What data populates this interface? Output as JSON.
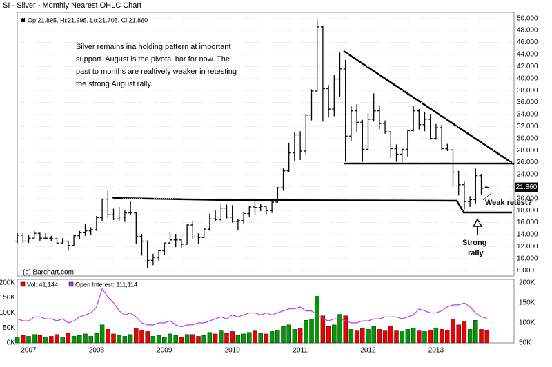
{
  "chart_data": [
    {
      "type": "ohlc",
      "title": "SI - Silver - Monthly Nearest OHLC Chart",
      "header": "Op:21.895, Hi:21.995, Lo:21.705, Cl:21.860",
      "price_tag": "21.860",
      "color": "#000000",
      "categories": [
        null,
        null,
        "2007",
        null,
        null,
        null,
        null,
        null,
        null,
        null,
        null,
        null,
        null,
        null,
        "2008",
        null,
        null,
        null,
        null,
        null,
        null,
        null,
        null,
        null,
        null,
        null,
        "2009",
        null,
        null,
        null,
        null,
        null,
        null,
        null,
        null,
        null,
        null,
        null,
        "2010",
        null,
        null,
        null,
        null,
        null,
        null,
        null,
        null,
        null,
        null,
        null,
        "2011",
        null,
        null,
        null,
        null,
        null,
        null,
        null,
        null,
        null,
        null,
        null,
        "2012",
        null,
        null,
        null,
        null,
        null,
        null,
        null,
        null,
        null,
        null,
        null,
        "2013",
        null,
        null,
        null,
        null,
        null,
        null,
        null,
        null,
        null
      ],
      "open": [
        12.9,
        13.9,
        12.9,
        13.4,
        14.2,
        13.4,
        13.4,
        13.3,
        12.6,
        12.9,
        12.2,
        13.8,
        14.3,
        14.6,
        14.8,
        16.8,
        19.9,
        17.3,
        16.6,
        16.9,
        17.6,
        17.6,
        13.7,
        12.9,
        9.7,
        10.2,
        11.3,
        12.6,
        13.1,
        13.1,
        12.4,
        15.6,
        13.6,
        13.5,
        14.9,
        16.6,
        16.5,
        18.4,
        16.9,
        16.2,
        16.3,
        17.5,
        18.6,
        18.5,
        18.7,
        18.0,
        19.4,
        21.8,
        24.6,
        27.6,
        30.6,
        27.9,
        33.9,
        37.9,
        48.6,
        38.3,
        34.9,
        39.9,
        41.6,
        30.4,
        34.6,
        32.7,
        28.2,
        33.2,
        34.6,
        32.5,
        31.1,
        28.3,
        27.4,
        28.2,
        31.3,
        34.6,
        32.3,
        33.2,
        30.0,
        31.8,
        28.3,
        28.1,
        24.4,
        22.3,
        19.5,
        19.8,
        23.8,
        21.895
      ],
      "high": [
        14.2,
        14.2,
        13.9,
        14.6,
        14.3,
        14.2,
        13.8,
        13.7,
        13.4,
        13.0,
        13.9,
        14.6,
        15.8,
        15.2,
        17.1,
        20.0,
        21.3,
        18.3,
        18.6,
        18.0,
        19.5,
        17.7,
        14.1,
        13.0,
        10.8,
        11.5,
        12.6,
        14.5,
        14.1,
        13.2,
        15.7,
        16.3,
        14.2,
        15.1,
        17.5,
        18.0,
        19.2,
        19.0,
        18.9,
        16.6,
        17.8,
        18.8,
        19.5,
        19.1,
        18.7,
        19.6,
        21.9,
        25.0,
        29.3,
        31.0,
        31.2,
        34.1,
        38.2,
        49.8,
        48.8,
        38.9,
        40.6,
        44.3,
        43.1,
        35.5,
        35.7,
        33.1,
        34.2,
        37.5,
        35.5,
        33.0,
        31.2,
        29.0,
        28.3,
        31.4,
        35.4,
        34.9,
        34.4,
        34.1,
        32.4,
        32.3,
        29.1,
        28.2,
        24.6,
        22.8,
        20.4,
        25.0,
        24.1,
        21.995
      ],
      "low": [
        12.6,
        12.6,
        12.6,
        13.3,
        12.9,
        13.2,
        12.9,
        12.4,
        12.5,
        11.3,
        12.1,
        13.2,
        13.8,
        13.9,
        14.6,
        16.2,
        16.8,
        16.4,
        16.2,
        16.1,
        17.3,
        12.5,
        10.5,
        8.4,
        8.9,
        9.5,
        10.6,
        12.4,
        11.9,
        11.7,
        12.3,
        13.3,
        12.5,
        13.4,
        14.6,
        16.2,
        16.1,
        16.7,
        16.0,
        14.7,
        15.7,
        17.0,
        17.2,
        17.9,
        17.4,
        17.6,
        19.3,
        21.3,
        24.4,
        26.3,
        26.4,
        27.3,
        33.0,
        37.8,
        32.8,
        33.5,
        33.7,
        36.9,
        26.1,
        29.6,
        31.1,
        26.1,
        28.1,
        32.8,
        31.6,
        30.8,
        26.7,
        26.1,
        26.0,
        27.0,
        31.2,
        31.5,
        31.2,
        29.8,
        29.8,
        28.0,
        27.9,
        22.0,
        20.5,
        18.2,
        18.6,
        19.2,
        20.6,
        21.705
      ],
      "close": [
        13.9,
        12.9,
        13.4,
        14.2,
        13.4,
        13.4,
        13.3,
        12.6,
        12.9,
        12.2,
        13.8,
        14.3,
        14.6,
        14.8,
        16.8,
        19.9,
        17.3,
        16.6,
        16.9,
        17.6,
        17.6,
        13.7,
        12.9,
        9.7,
        10.2,
        11.3,
        12.6,
        13.1,
        13.1,
        12.4,
        15.6,
        13.6,
        13.5,
        14.9,
        16.6,
        16.5,
        18.4,
        16.9,
        16.2,
        16.3,
        17.5,
        18.6,
        18.5,
        18.7,
        18.0,
        19.4,
        21.8,
        24.6,
        27.6,
        30.6,
        27.9,
        33.9,
        37.9,
        48.6,
        38.3,
        34.9,
        39.9,
        41.6,
        30.4,
        34.6,
        32.7,
        28.2,
        33.2,
        34.6,
        32.5,
        31.1,
        28.3,
        27.4,
        28.2,
        31.3,
        34.6,
        32.3,
        33.2,
        30.0,
        31.8,
        28.3,
        28.1,
        24.4,
        22.3,
        19.5,
        19.8,
        23.8,
        21.7,
        21.86
      ],
      "ylim": [
        7.1,
        51
      ],
      "yticks": [
        {
          "value": 8,
          "label": "8.000"
        },
        {
          "value": 10,
          "label": "10.000"
        },
        {
          "value": 12,
          "label": "12.000"
        },
        {
          "value": 14,
          "label": "14.000"
        },
        {
          "value": 16,
          "label": "16.000"
        },
        {
          "value": 18,
          "label": "18.000"
        },
        {
          "value": 20,
          "label": "20.000"
        },
        {
          "value": 22,
          "label": "22.000"
        },
        {
          "value": 24,
          "label": "24.000"
        },
        {
          "value": 26,
          "label": "26.000"
        },
        {
          "value": 28,
          "label": "28.000"
        },
        {
          "value": 30,
          "label": "30.000"
        },
        {
          "value": 32,
          "label": "32.000"
        },
        {
          "value": 34,
          "label": "34.000"
        },
        {
          "value": 36,
          "label": "36.000"
        },
        {
          "value": 38,
          "label": "38.000"
        },
        {
          "value": 40,
          "label": "40.000"
        },
        {
          "value": 42,
          "label": "42.000"
        },
        {
          "value": 44,
          "label": "44.000"
        },
        {
          "value": 46,
          "label": "46.000"
        },
        {
          "value": 48,
          "label": "48.000"
        },
        {
          "value": 50,
          "label": "50.000"
        }
      ],
      "grid": true,
      "annotations": [
        "Silver remains ina holding pattern at important",
        "support.  August is the pivotal bar for now.  The",
        "past to months are realtively weaker in retesting",
        "the strong August rally.",
        "Strong",
        "rally",
        "Weak retest?",
        "(c) Barchart.com"
      ]
    },
    {
      "type": "bar",
      "series": [
        {
          "name": "Vol: 41,144",
          "up_color": "#009900",
          "down_color": "#ee0000",
          "values": [
            20,
            25,
            22,
            28,
            25,
            20,
            22,
            28,
            20,
            32,
            22,
            25,
            30,
            22,
            32,
            60,
            45,
            30,
            25,
            22,
            28,
            50,
            42,
            38,
            22,
            25,
            20,
            30,
            25,
            20,
            28,
            28,
            22,
            25,
            35,
            30,
            40,
            32,
            38,
            25,
            30,
            35,
            40,
            32,
            30,
            38,
            42,
            55,
            60,
            45,
            50,
            75,
            80,
            155,
            90,
            55,
            60,
            95,
            90,
            45,
            40,
            50,
            45,
            55,
            45,
            40,
            55,
            40,
            38,
            45,
            50,
            40,
            38,
            42,
            50,
            45,
            42,
            80,
            60,
            70,
            45,
            75,
            45,
            41.144
          ]
        },
        {
          "name": "Open Interest: 111,114",
          "type": "line",
          "axis": "y2",
          "color": "#b040e8",
          "values": [
            110,
            105,
            105,
            115,
            115,
            110,
            110,
            105,
            110,
            100,
            105,
            115,
            120,
            125,
            140,
            185,
            165,
            150,
            130,
            120,
            125,
            115,
            100,
            95,
            95,
            100,
            100,
            105,
            95,
            90,
            95,
            95,
            100,
            100,
            105,
            110,
            115,
            110,
            120,
            115,
            120,
            125,
            125,
            120,
            125,
            120,
            125,
            130,
            135,
            135,
            140,
            130,
            130,
            120,
            110,
            105,
            110,
            110,
            105,
            100,
            100,
            105,
            105,
            110,
            110,
            115,
            115,
            115,
            110,
            115,
            120,
            135,
            130,
            125,
            125,
            130,
            140,
            145,
            145,
            150,
            140,
            125,
            115,
            111.114
          ]
        }
      ],
      "ylim": [
        0,
        211
      ],
      "yticks": [
        {
          "value": 0,
          "label": "0K"
        },
        {
          "value": 50,
          "label": "50K"
        },
        {
          "value": 100,
          "label": "100K"
        },
        {
          "value": 150,
          "label": "150K"
        },
        {
          "value": 200,
          "label": "200K"
        }
      ],
      "y2lim": [
        50,
        208.6
      ],
      "y2ticks": [
        {
          "value": 50,
          "label": "50K"
        },
        {
          "value": 100,
          "label": "100K"
        },
        {
          "value": 150,
          "label": "150K"
        },
        {
          "value": 200,
          "label": "200K"
        }
      ]
    }
  ]
}
